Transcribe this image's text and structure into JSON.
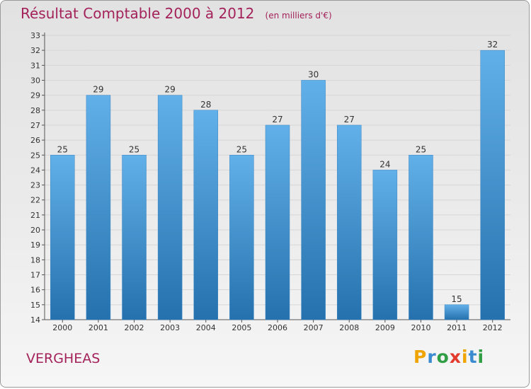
{
  "header": {
    "title": "Résultat Comptable 2000 à 2012",
    "unit": "(en milliers d'€)"
  },
  "commune": "VERGHEAS",
  "logo": {
    "text": "Proxiti",
    "letter_colors": [
      "#f0a400",
      "#3a8bd0",
      "#2f9e44",
      "#e23b2e",
      "#f0a400",
      "#3a8bd0",
      "#2f9e44"
    ]
  },
  "colors": {
    "title": "#a3225a",
    "bar_top": "#62b0ea",
    "bar_bottom": "#2571ad",
    "grid": "#d6d6d6"
  },
  "chart_data": {
    "type": "bar",
    "title": "Résultat Comptable 2000 à 2012",
    "xlabel": "",
    "ylabel": "",
    "categories": [
      "2000",
      "2001",
      "2002",
      "2003",
      "2004",
      "2005",
      "2006",
      "2007",
      "2008",
      "2009",
      "2010",
      "2011",
      "2012"
    ],
    "values": [
      25,
      29,
      25,
      29,
      28,
      25,
      27,
      30,
      27,
      24,
      25,
      15,
      32
    ],
    "ylim": [
      14,
      33
    ],
    "yticks": [
      14,
      15,
      16,
      17,
      18,
      19,
      20,
      21,
      22,
      23,
      24,
      25,
      26,
      27,
      28,
      29,
      30,
      31,
      32,
      33
    ],
    "grid": true
  }
}
